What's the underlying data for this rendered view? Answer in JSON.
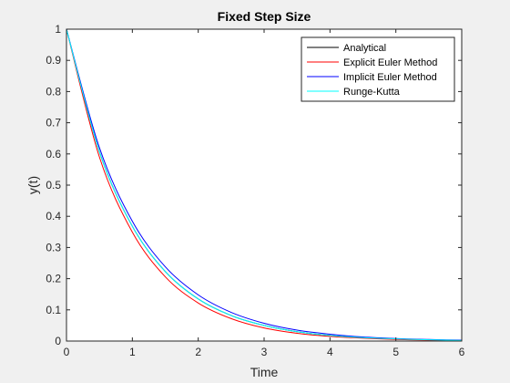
{
  "chart_data": {
    "type": "line",
    "title": "Fixed Step Size",
    "xlabel": "Time",
    "ylabel": "y(t)",
    "xlim": [
      0,
      6
    ],
    "ylim": [
      0,
      1
    ],
    "xticks": [
      0,
      1,
      2,
      3,
      4,
      5,
      6
    ],
    "yticks": [
      0,
      0.1,
      0.2,
      0.3,
      0.4,
      0.5,
      0.6,
      0.7,
      0.8,
      0.9,
      1
    ],
    "grid": false,
    "legend_position": "top-right",
    "x": [
      0,
      0.5,
      1,
      1.5,
      2,
      2.5,
      3,
      3.5,
      4,
      4.5,
      5,
      5.5,
      6
    ],
    "series": [
      {
        "name": "Analytical",
        "color": "#000000",
        "values": [
          1,
          0.607,
          0.368,
          0.223,
          0.135,
          0.082,
          0.05,
          0.03,
          0.018,
          0.011,
          0.007,
          0.004,
          0.002
        ]
      },
      {
        "name": "Explicit Euler Method",
        "color": "#ff0000",
        "values": [
          1,
          0.59,
          0.349,
          0.206,
          0.122,
          0.072,
          0.042,
          0.025,
          0.015,
          0.009,
          0.005,
          0.003,
          0.002
        ]
      },
      {
        "name": "Implicit Euler Method",
        "color": "#0000ff",
        "values": [
          1,
          0.62,
          0.384,
          0.238,
          0.148,
          0.092,
          0.057,
          0.035,
          0.022,
          0.013,
          0.008,
          0.005,
          0.003
        ]
      },
      {
        "name": "Runge-Kutta",
        "color": "#00ffff",
        "values": [
          1,
          0.607,
          0.368,
          0.223,
          0.135,
          0.082,
          0.05,
          0.03,
          0.018,
          0.011,
          0.007,
          0.004,
          0.002
        ]
      }
    ]
  }
}
